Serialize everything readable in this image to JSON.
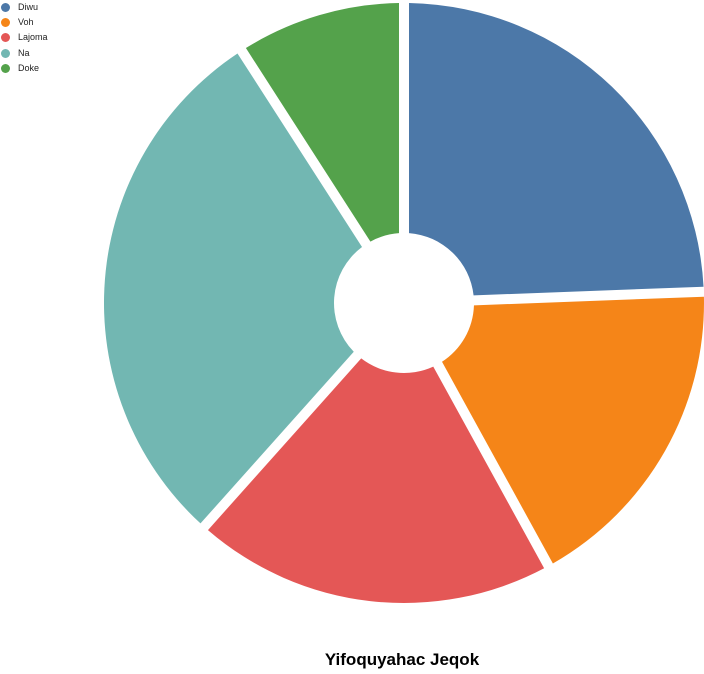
{
  "chart_data": {
    "type": "pie",
    "title": "Yifoquyahac Jeqok",
    "legend_position": "top-left",
    "categories": [
      "Diwu",
      "Voh",
      "Lajoma",
      "Na",
      "Doke"
    ],
    "values": [
      24.4,
      17.6,
      19.6,
      29.3,
      9.1
    ],
    "colors": [
      "#4c78a8",
      "#f58518",
      "#e45756",
      "#72b7b2",
      "#54a24b"
    ]
  }
}
